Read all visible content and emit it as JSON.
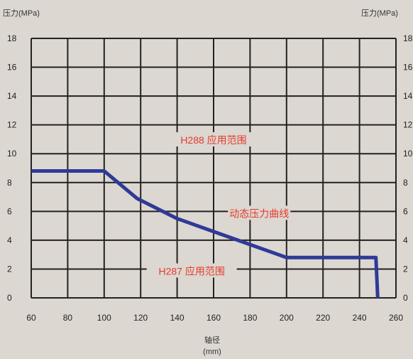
{
  "chart_data": {
    "type": "line",
    "y_unit_left": "压力(MPa)",
    "y_unit_right": "压力(MPa)",
    "xlabel": "轴径",
    "xunit": "(mm)",
    "xlim": [
      60,
      260
    ],
    "ylim": [
      0,
      18
    ],
    "x_ticks": [
      60,
      80,
      100,
      120,
      140,
      160,
      180,
      200,
      220,
      240,
      260
    ],
    "y_ticks": [
      0,
      2,
      4,
      6,
      8,
      10,
      12,
      14,
      16,
      18
    ],
    "grid": true,
    "series": [
      {
        "name": "动态压力曲线",
        "color": "#2f3a97",
        "x": [
          60,
          100,
          118,
          140,
          160,
          180,
          200,
          249,
          250
        ],
        "y": [
          8.8,
          8.8,
          6.9,
          5.5,
          4.6,
          3.7,
          2.8,
          2.8,
          0
        ]
      }
    ],
    "annotations": [
      {
        "text": "H288 应用范围",
        "x": 160,
        "y": 10.9
      },
      {
        "text": "动态压力曲线",
        "x": 185,
        "y": 5.8
      },
      {
        "text": "H287 应用范围",
        "x": 148,
        "y": 1.8
      }
    ]
  }
}
